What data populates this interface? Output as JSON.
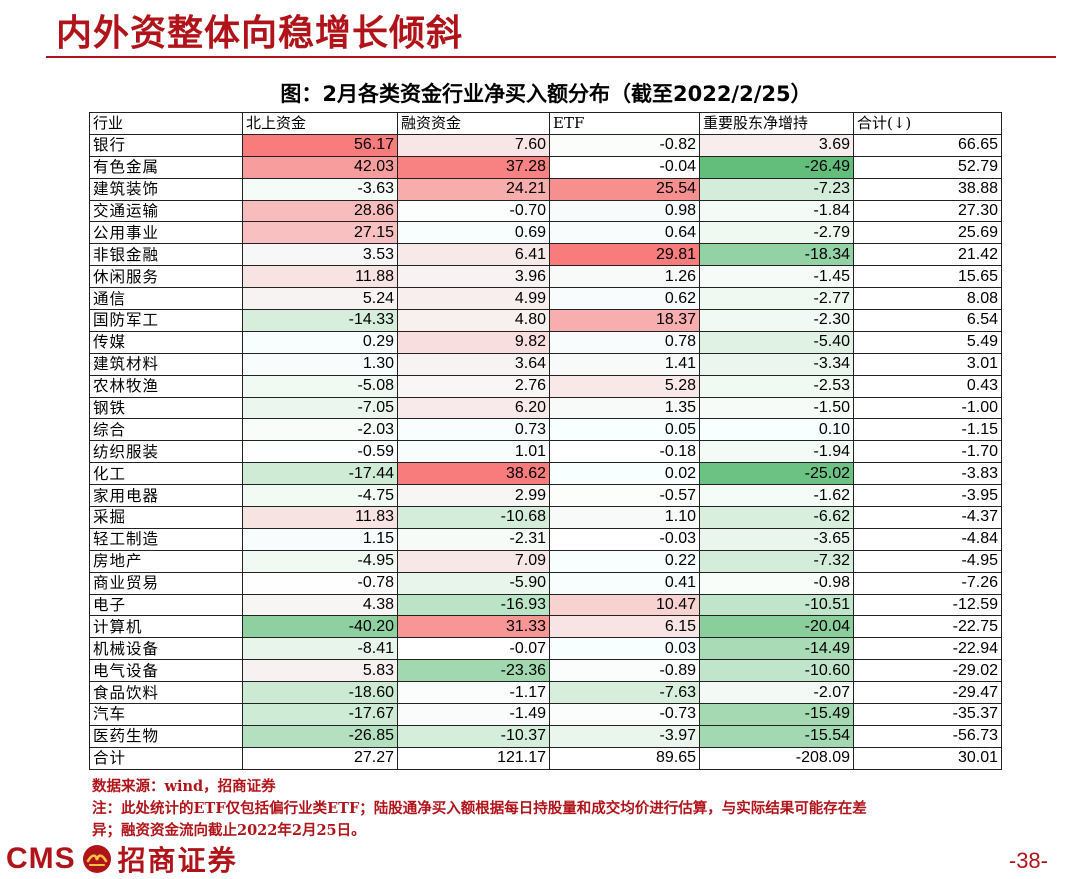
{
  "page": {
    "title": "内外资整体向稳增长倾斜",
    "figure_title": "图：2月各类资金行业净买入额分布（截至2022/2/25）",
    "page_number": "-38-"
  },
  "table": {
    "headers": [
      "行业",
      "北上资金",
      "融资资金",
      "ETF",
      "重要股东净增持",
      "合计(↓)"
    ],
    "rows": [
      [
        "银行",
        "56.17",
        "7.60",
        "-0.82",
        "3.69",
        "66.65"
      ],
      [
        "有色金属",
        "42.03",
        "37.28",
        "-0.04",
        "-26.49",
        "52.79"
      ],
      [
        "建筑装饰",
        "-3.63",
        "24.21",
        "25.54",
        "-7.23",
        "38.88"
      ],
      [
        "交通运输",
        "28.86",
        "-0.70",
        "0.98",
        "-1.84",
        "27.30"
      ],
      [
        "公用事业",
        "27.15",
        "0.69",
        "0.64",
        "-2.79",
        "25.69"
      ],
      [
        "非银金融",
        "3.53",
        "6.41",
        "29.81",
        "-18.34",
        "21.42"
      ],
      [
        "休闲服务",
        "11.88",
        "3.96",
        "1.26",
        "-1.45",
        "15.65"
      ],
      [
        "通信",
        "5.24",
        "4.99",
        "0.62",
        "-2.77",
        "8.08"
      ],
      [
        "国防军工",
        "-14.33",
        "4.80",
        "18.37",
        "-2.30",
        "6.54"
      ],
      [
        "传媒",
        "0.29",
        "9.82",
        "0.78",
        "-5.40",
        "5.49"
      ],
      [
        "建筑材料",
        "1.30",
        "3.64",
        "1.41",
        "-3.34",
        "3.01"
      ],
      [
        "农林牧渔",
        "-5.08",
        "2.76",
        "5.28",
        "-2.53",
        "0.43"
      ],
      [
        "钢铁",
        "-7.05",
        "6.20",
        "1.35",
        "-1.50",
        "-1.00"
      ],
      [
        "综合",
        "-2.03",
        "0.73",
        "0.05",
        "0.10",
        "-1.15"
      ],
      [
        "纺织服装",
        "-0.59",
        "1.01",
        "-0.18",
        "-1.94",
        "-1.70"
      ],
      [
        "化工",
        "-17.44",
        "38.62",
        "0.02",
        "-25.02",
        "-3.83"
      ],
      [
        "家用电器",
        "-4.75",
        "2.99",
        "-0.57",
        "-1.62",
        "-3.95"
      ],
      [
        "采掘",
        "11.83",
        "-10.68",
        "1.10",
        "-6.62",
        "-4.37"
      ],
      [
        "轻工制造",
        "1.15",
        "-2.31",
        "-0.03",
        "-3.65",
        "-4.84"
      ],
      [
        "房地产",
        "-4.95",
        "7.09",
        "0.22",
        "-7.32",
        "-4.95"
      ],
      [
        "商业贸易",
        "-0.78",
        "-5.90",
        "0.41",
        "-0.98",
        "-7.26"
      ],
      [
        "电子",
        "4.38",
        "-16.93",
        "10.47",
        "-10.51",
        "-12.59"
      ],
      [
        "计算机",
        "-40.20",
        "31.33",
        "6.15",
        "-20.04",
        "-22.75"
      ],
      [
        "机械设备",
        "-8.41",
        "-0.07",
        "0.03",
        "-14.49",
        "-22.94"
      ],
      [
        "电气设备",
        "5.83",
        "-23.36",
        "-0.89",
        "-10.60",
        "-29.02"
      ],
      [
        "食品饮料",
        "-18.60",
        "-1.17",
        "-7.63",
        "-2.07",
        "-29.47"
      ],
      [
        "汽车",
        "-17.67",
        "-1.49",
        "-0.73",
        "-15.49",
        "-35.37"
      ],
      [
        "医药生物",
        "-26.85",
        "-10.37",
        "-3.97",
        "-15.54",
        "-56.73"
      ],
      [
        "合计",
        "27.27",
        "121.17",
        "89.65",
        "-208.09",
        "30.01"
      ]
    ]
  },
  "notes": {
    "source": "数据来源：wind，招商证券",
    "note_line1": "注：此处统计的ETF仅包括偏行业类ETF；陆股通净买入额根据每日持股量和成交均价进行估算，与实际结果可能存在差",
    "note_line2": "异；融资资金流向截止2022年2月25日。"
  },
  "logo": {
    "cms": "CMS",
    "company_cn": "招商证券",
    "mark": "招商-logo-icon"
  },
  "colors": {
    "brand_red": "#b0141a",
    "positive": "#f87c7c",
    "negative": "#63be7b"
  }
}
